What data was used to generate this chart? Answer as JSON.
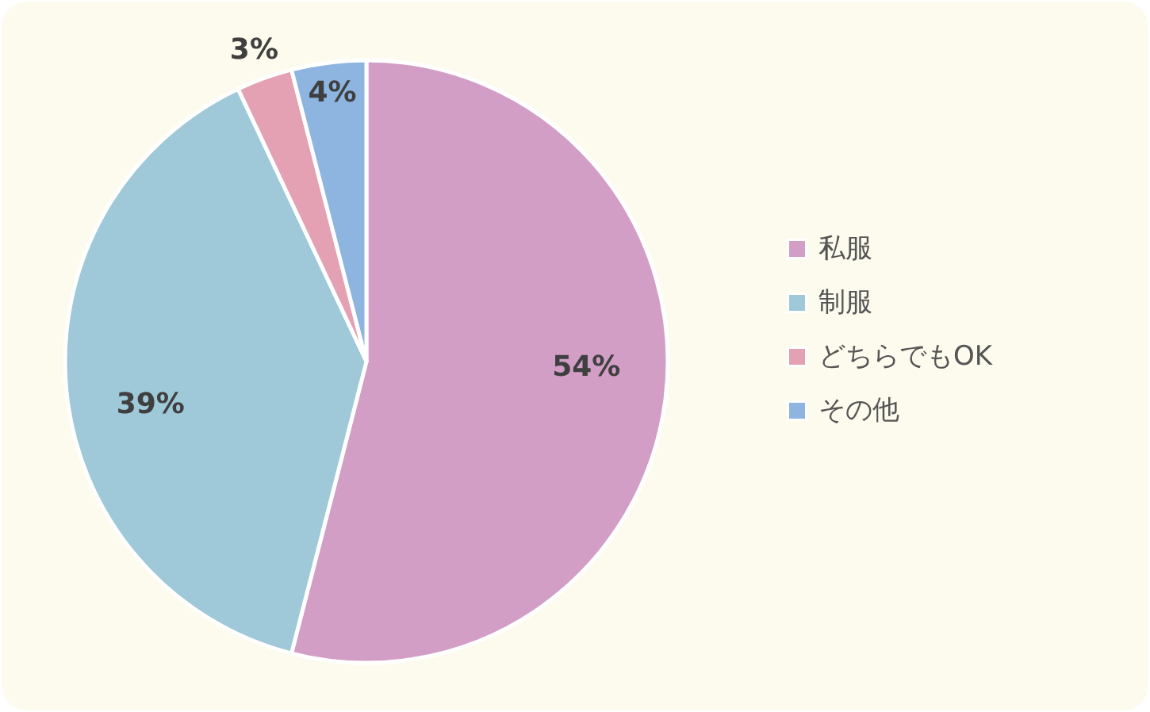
{
  "chart_data": {
    "type": "pie",
    "categories": [
      "私服",
      "制服",
      "どちらでもOK",
      "その他"
    ],
    "values": [
      54,
      39,
      3,
      4
    ],
    "colors": [
      "#d39ec6",
      "#9fc8d8",
      "#e4a1b3",
      "#8db5e0"
    ],
    "value_labels": [
      "54%",
      "39%",
      "3%",
      "4%"
    ],
    "legend": "right"
  }
}
